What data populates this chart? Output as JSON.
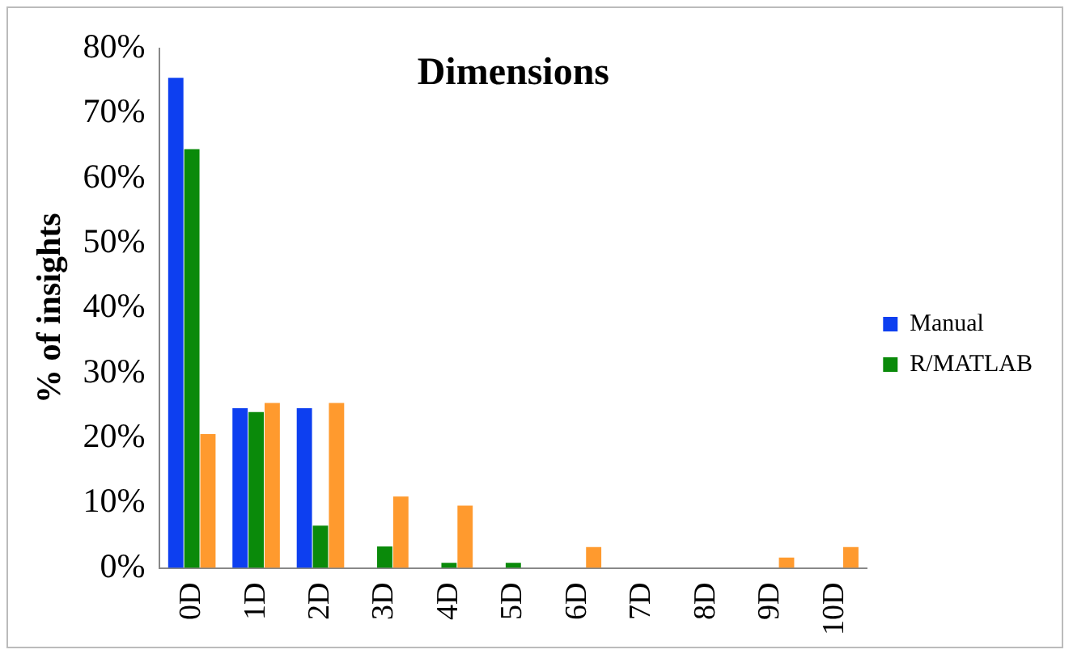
{
  "chart_data": {
    "type": "bar",
    "title": "Dimensions",
    "ylabel": "% of insights",
    "categories": [
      "0D",
      "1D",
      "2D",
      "3D",
      "4D",
      "5D",
      "6D",
      "7D",
      "8D",
      "9D",
      "10D"
    ],
    "series": [
      {
        "name": "Manual",
        "color": "#0d3ff0",
        "values": [
          75.5,
          24.6,
          24.6,
          0,
          0,
          0,
          0,
          0,
          0,
          0,
          0
        ]
      },
      {
        "name": "R/MATLAB",
        "color": "#0a8a0a",
        "values": [
          64.5,
          24,
          6.5,
          3.3,
          0.8,
          0.8,
          0,
          0,
          0,
          0,
          0
        ]
      },
      {
        "color": "#ff9a2e",
        "values": [
          20.6,
          25.4,
          25.4,
          11,
          9.6,
          0,
          3.2,
          0,
          0,
          1.6,
          3.2
        ]
      }
    ],
    "ylim": [
      0,
      80
    ],
    "yticks": [
      {
        "value": 0,
        "label": "0%"
      },
      {
        "value": 10,
        "label": "10%"
      },
      {
        "value": 20,
        "label": "20%"
      },
      {
        "value": 30,
        "label": "30%"
      },
      {
        "value": 40,
        "label": "40%"
      },
      {
        "value": 50,
        "label": "50%"
      },
      {
        "value": 60,
        "label": "60%"
      },
      {
        "value": 70,
        "label": "70%"
      },
      {
        "value": 80,
        "label": "80%"
      }
    ],
    "grid": false,
    "legend": "right"
  }
}
